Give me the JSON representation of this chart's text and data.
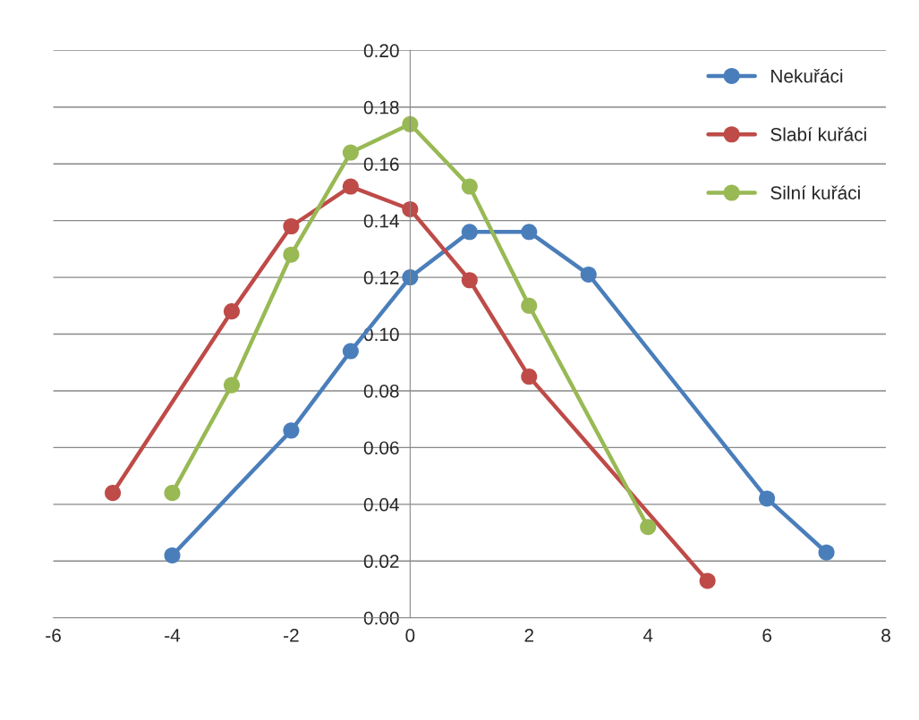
{
  "chart_data": {
    "type": "line",
    "marker": "circle",
    "line_style": "solid",
    "grid": "y",
    "legend": "top right",
    "xlim": [
      -6,
      8
    ],
    "xticks": [
      -6,
      -4,
      -2,
      0,
      2,
      4,
      6,
      8
    ],
    "ylim": [
      0,
      0.2
    ],
    "yticks": [
      {
        "value": 0,
        "label": "0.00"
      },
      {
        "value": 0.02,
        "label": "0.02"
      },
      {
        "value": 0.04,
        "label": "0.04"
      },
      {
        "value": 0.06,
        "label": "0.06"
      },
      {
        "value": 0.08,
        "label": "0.08"
      },
      {
        "value": 0.1,
        "label": "0.10"
      },
      {
        "value": 0.12,
        "label": "0.12"
      },
      {
        "value": 0.14,
        "label": "0.14"
      },
      {
        "value": 0.16,
        "label": "0.16"
      },
      {
        "value": 0.18,
        "label": "0.18"
      },
      {
        "value": 0.2,
        "label": "0.20"
      }
    ],
    "series": [
      {
        "name": "Nekuřáci",
        "color": "#4a7ebb",
        "x": [
          -4,
          -2,
          -1,
          0,
          1,
          2,
          3,
          6,
          7
        ],
        "values": [
          0.022,
          0.066,
          0.094,
          0.12,
          0.136,
          0.136,
          0.121,
          0.042,
          0.023
        ]
      },
      {
        "name": "Slabí kuřáci",
        "color": "#be4b48",
        "x": [
          -5,
          -3,
          -2,
          -1,
          0,
          1,
          2,
          5
        ],
        "values": [
          0.044,
          0.108,
          0.138,
          0.152,
          0.144,
          0.119,
          0.085,
          0.013
        ]
      },
      {
        "name": "Silní kuřáci",
        "color": "#98b954",
        "x": [
          -4,
          -3,
          -2,
          -1,
          0,
          1,
          2,
          4
        ],
        "values": [
          0.044,
          0.082,
          0.128,
          0.164,
          0.174,
          0.152,
          0.11,
          0.032
        ]
      }
    ]
  }
}
